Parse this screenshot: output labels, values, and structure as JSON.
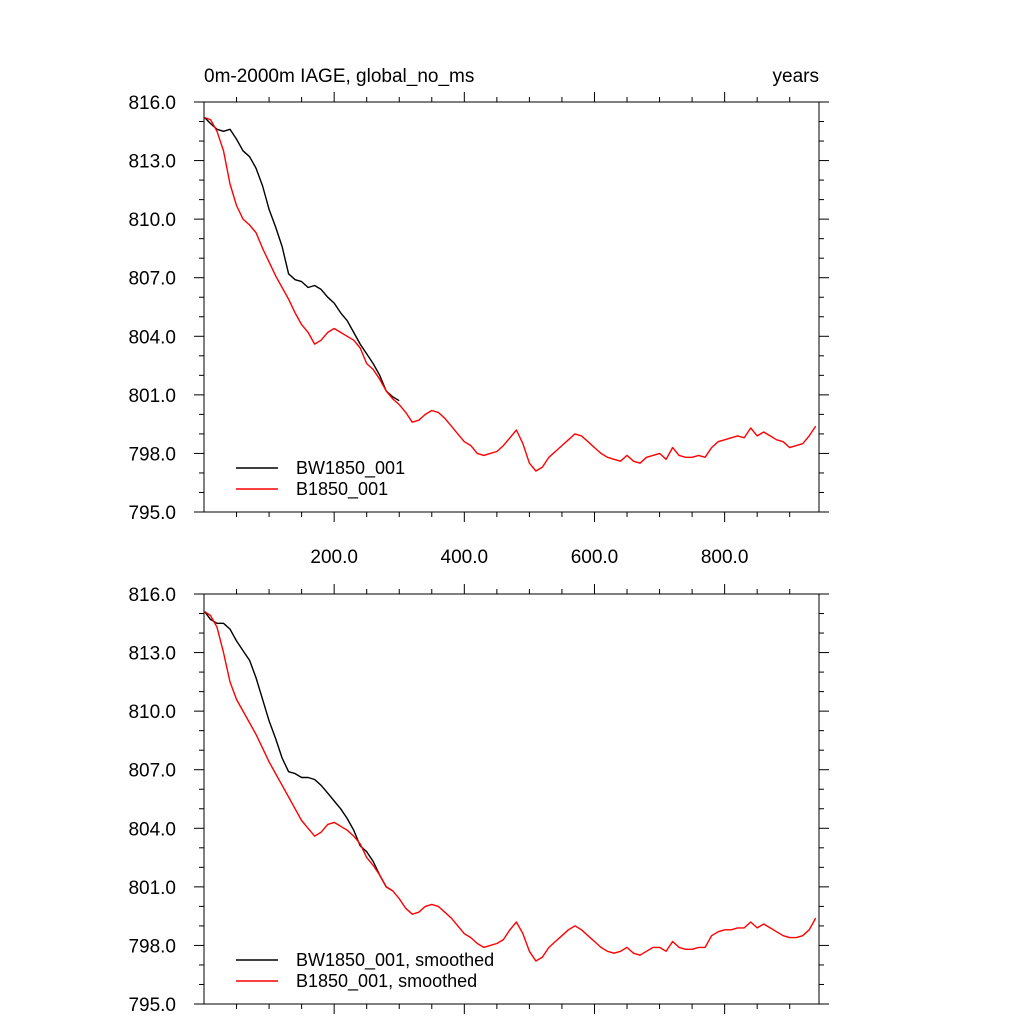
{
  "chart_data": [
    {
      "type": "line",
      "title": "0m-2000m IAGE, global_no_ms",
      "units": "years",
      "xlim": [
        0,
        945
      ],
      "ylim": [
        795.0,
        816.0
      ],
      "xticks": [
        200,
        400,
        600,
        800
      ],
      "xtick_labels": [
        "200.0",
        "400.0",
        "600.0",
        "800.0"
      ],
      "yticks": [
        795,
        798,
        801,
        804,
        807,
        810,
        813,
        816
      ],
      "ytick_labels": [
        "795.0",
        "798.0",
        "801.0",
        "804.0",
        "807.0",
        "810.0",
        "813.0",
        "816.0"
      ],
      "legend_position": "bottom-left",
      "series": [
        {
          "name": "BW1850_001",
          "color": "#000000",
          "x": [
            1,
            10,
            20,
            30,
            40,
            50,
            60,
            70,
            80,
            90,
            100,
            110,
            120,
            130,
            140,
            150,
            160,
            170,
            180,
            190,
            200,
            210,
            220,
            230,
            240,
            250,
            260,
            270,
            280,
            290,
            300
          ],
          "y": [
            815.2,
            814.9,
            814.6,
            814.5,
            814.6,
            814.1,
            813.5,
            813.2,
            812.6,
            811.7,
            810.5,
            809.6,
            808.6,
            807.2,
            806.9,
            806.8,
            806.5,
            806.6,
            806.4,
            806.0,
            805.7,
            805.2,
            804.8,
            804.2,
            803.6,
            803.1,
            802.6,
            802.0,
            801.2,
            800.9,
            800.7
          ]
        },
        {
          "name": "B1850_001",
          "color": "#ff0000",
          "x": [
            1,
            10,
            20,
            30,
            40,
            50,
            60,
            70,
            80,
            90,
            100,
            110,
            120,
            130,
            140,
            150,
            160,
            170,
            180,
            190,
            200,
            210,
            220,
            230,
            240,
            250,
            260,
            270,
            280,
            290,
            300,
            310,
            320,
            330,
            340,
            350,
            360,
            370,
            380,
            390,
            400,
            410,
            420,
            430,
            440,
            450,
            460,
            470,
            480,
            490,
            500,
            510,
            520,
            530,
            540,
            550,
            560,
            570,
            580,
            590,
            600,
            610,
            620,
            630,
            640,
            650,
            660,
            670,
            680,
            690,
            700,
            710,
            720,
            730,
            740,
            750,
            760,
            770,
            780,
            790,
            800,
            810,
            820,
            830,
            840,
            850,
            860,
            870,
            880,
            890,
            900,
            910,
            920,
            930,
            940
          ],
          "y": [
            815.2,
            815.1,
            814.5,
            813.5,
            811.8,
            810.7,
            810.0,
            809.7,
            809.3,
            808.5,
            807.8,
            807.1,
            806.5,
            805.9,
            805.2,
            804.6,
            804.2,
            803.6,
            803.8,
            804.2,
            804.4,
            804.2,
            804.0,
            803.8,
            803.4,
            802.6,
            802.3,
            801.8,
            801.2,
            800.8,
            800.5,
            800.1,
            799.6,
            799.7,
            800.0,
            800.2,
            800.1,
            799.8,
            799.4,
            799.0,
            798.6,
            798.4,
            798.0,
            797.9,
            798.0,
            798.1,
            798.4,
            798.8,
            799.2,
            798.5,
            797.5,
            797.1,
            797.3,
            797.8,
            798.1,
            798.4,
            798.7,
            799.0,
            798.9,
            798.6,
            798.3,
            798.0,
            797.8,
            797.7,
            797.6,
            797.9,
            797.6,
            797.5,
            797.8,
            797.9,
            798.0,
            797.7,
            798.3,
            797.9,
            797.8,
            797.8,
            797.9,
            797.8,
            798.3,
            798.6,
            798.7,
            798.8,
            798.9,
            798.8,
            799.3,
            798.9,
            799.1,
            798.9,
            798.7,
            798.6,
            798.3,
            798.4,
            798.5,
            798.9,
            799.4
          ]
        }
      ]
    },
    {
      "type": "line",
      "xlim": [
        0,
        945
      ],
      "ylim": [
        795.0,
        816.0
      ],
      "xticks": [
        200,
        400,
        600,
        800
      ],
      "yticks": [
        795,
        798,
        801,
        804,
        807,
        810,
        813,
        816
      ],
      "ytick_labels": [
        "795.0",
        "798.0",
        "801.0",
        "804.0",
        "807.0",
        "810.0",
        "813.0",
        "816.0"
      ],
      "legend_position": "bottom-left",
      "series": [
        {
          "name": "BW1850_001, smoothed",
          "color": "#000000",
          "x": [
            1,
            10,
            20,
            30,
            40,
            50,
            60,
            70,
            80,
            90,
            100,
            110,
            120,
            130,
            140,
            150,
            160,
            170,
            180,
            190,
            200,
            210,
            220,
            230,
            240,
            250,
            260,
            270,
            280,
            290
          ],
          "y": [
            815.1,
            814.7,
            814.5,
            814.5,
            814.2,
            813.6,
            813.1,
            812.6,
            811.7,
            810.6,
            809.5,
            808.6,
            807.6,
            806.9,
            806.8,
            806.6,
            806.6,
            806.5,
            806.2,
            805.8,
            805.4,
            805.0,
            804.5,
            803.9,
            803.1,
            802.8,
            802.3,
            801.6,
            801.0,
            800.8
          ]
        },
        {
          "name": "B1850_001, smoothed",
          "color": "#ff0000",
          "x": [
            1,
            10,
            20,
            30,
            40,
            50,
            60,
            70,
            80,
            90,
            100,
            110,
            120,
            130,
            140,
            150,
            160,
            170,
            180,
            190,
            200,
            210,
            220,
            230,
            240,
            250,
            260,
            270,
            280,
            290,
            300,
            310,
            320,
            330,
            340,
            350,
            360,
            370,
            380,
            390,
            400,
            410,
            420,
            430,
            440,
            450,
            460,
            470,
            480,
            490,
            500,
            510,
            520,
            530,
            540,
            550,
            560,
            570,
            580,
            590,
            600,
            610,
            620,
            630,
            640,
            650,
            660,
            670,
            680,
            690,
            700,
            710,
            720,
            730,
            740,
            750,
            760,
            770,
            780,
            790,
            800,
            810,
            820,
            830,
            840,
            850,
            860,
            870,
            880,
            890,
            900,
            910,
            920,
            930,
            940
          ],
          "y": [
            815.1,
            814.9,
            814.3,
            813.0,
            811.5,
            810.6,
            810.0,
            809.4,
            808.8,
            808.1,
            807.4,
            806.8,
            806.2,
            805.6,
            805.0,
            804.4,
            804.0,
            803.6,
            803.8,
            804.2,
            804.3,
            804.1,
            803.9,
            803.6,
            803.2,
            802.5,
            802.1,
            801.6,
            801.0,
            800.8,
            800.4,
            799.9,
            799.6,
            799.7,
            800.0,
            800.1,
            800.0,
            799.7,
            799.4,
            799.0,
            798.6,
            798.4,
            798.1,
            797.9,
            798.0,
            798.1,
            798.3,
            798.8,
            799.2,
            798.6,
            797.7,
            797.2,
            797.4,
            797.9,
            798.2,
            798.5,
            798.8,
            799.0,
            798.8,
            798.5,
            798.2,
            797.9,
            797.7,
            797.6,
            797.7,
            797.9,
            797.6,
            797.5,
            797.7,
            797.9,
            797.9,
            797.7,
            798.2,
            797.9,
            797.8,
            797.8,
            797.9,
            797.9,
            798.5,
            798.7,
            798.8,
            798.8,
            798.9,
            798.9,
            799.2,
            798.9,
            799.1,
            798.9,
            798.7,
            798.5,
            798.4,
            798.4,
            798.5,
            798.8,
            799.4
          ]
        }
      ]
    }
  ]
}
